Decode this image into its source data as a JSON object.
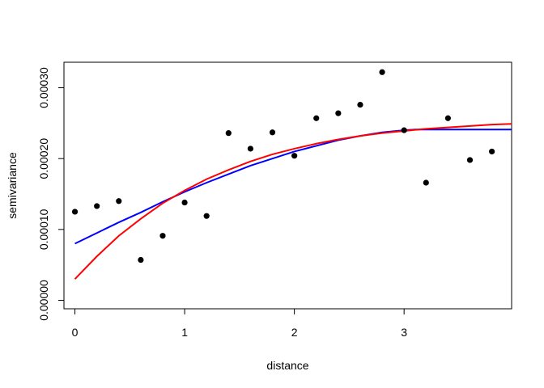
{
  "chart_data": {
    "type": "scatter",
    "xlabel": "distance",
    "ylabel": "semivariance",
    "xlim": [
      -0.1,
      3.98
    ],
    "ylim": [
      -1.2e-05,
      0.000336
    ],
    "x_ticks": [
      0,
      1,
      2,
      3
    ],
    "x_tick_labels": [
      "0",
      "1",
      "2",
      "3"
    ],
    "y_ticks": [
      0,
      0.0001,
      0.0002,
      0.0003
    ],
    "y_tick_labels": [
      "0.00000",
      "0.00010",
      "0.00020",
      "0.00030"
    ],
    "grid": false,
    "points": {
      "color": "#000000",
      "x": [
        0.0,
        0.2,
        0.4,
        0.6,
        0.8,
        1.0,
        1.2,
        1.4,
        1.6,
        1.8,
        2.0,
        2.2,
        2.4,
        2.6,
        2.8,
        3.0,
        3.2,
        3.4,
        3.6,
        3.8
      ],
      "y": [
        0.000125,
        0.000133,
        0.00014,
        5.7e-05,
        9.1e-05,
        0.000138,
        0.000119,
        0.000236,
        0.000214,
        0.000237,
        0.000204,
        0.000257,
        0.000264,
        0.000276,
        0.000322,
        0.00024,
        0.000166,
        0.000257,
        0.000198,
        0.00021
      ]
    },
    "series": [
      {
        "color": "#0000ff",
        "x": [
          0.0,
          0.2,
          0.4,
          0.6,
          0.8,
          1.0,
          1.2,
          1.4,
          1.6,
          1.8,
          2.0,
          2.2,
          2.4,
          2.6,
          2.8,
          3.0,
          3.1,
          3.2,
          3.4,
          3.6,
          3.8,
          3.98
        ],
        "y": [
          8e-05,
          9.5e-05,
          0.00011,
          0.000124,
          0.000139,
          0.000153,
          0.000166,
          0.000178,
          0.00019,
          0.0002,
          0.00021,
          0.000218,
          0.000226,
          0.000232,
          0.000237,
          0.00024,
          0.000241,
          0.000241,
          0.000241,
          0.000241,
          0.000241,
          0.000241
        ]
      },
      {
        "color": "#ff0000",
        "x": [
          0.0,
          0.2,
          0.4,
          0.6,
          0.8,
          1.0,
          1.2,
          1.4,
          1.6,
          1.8,
          2.0,
          2.2,
          2.4,
          2.6,
          2.8,
          3.0,
          3.2,
          3.4,
          3.6,
          3.8,
          3.98
        ],
        "y": [
          3e-05,
          6.2e-05,
          9.1e-05,
          0.000115,
          0.000137,
          0.000155,
          0.000171,
          0.000184,
          0.000196,
          0.000206,
          0.000214,
          0.000221,
          0.000227,
          0.000232,
          0.000236,
          0.000239,
          0.000242,
          0.000244,
          0.000246,
          0.000248,
          0.000249
        ]
      }
    ]
  }
}
